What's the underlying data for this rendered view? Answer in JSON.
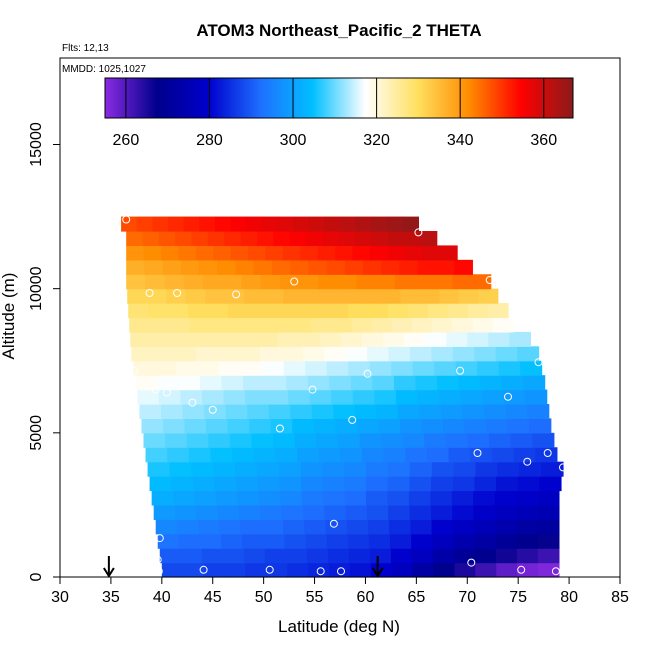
{
  "chart_data": {
    "type": "heatmap",
    "title": "ATOM3 Northeast_Pacific_2 THETA",
    "flights_label": "Flts: 12,13",
    "mmdd_label": "MMDD: 1025,1027",
    "xlabel": "Latitude (deg N)",
    "ylabel": "Altitude (m)",
    "xlim": [
      30,
      85
    ],
    "ylim": [
      0,
      18000
    ],
    "x_ticks": [
      30,
      35,
      40,
      45,
      50,
      55,
      60,
      65,
      70,
      75,
      80,
      85
    ],
    "y_ticks": [
      0,
      5000,
      10000,
      15000
    ],
    "colorbar": {
      "min": 255,
      "max": 367,
      "ticks": [
        260,
        280,
        300,
        320,
        340,
        360
      ],
      "colors": [
        "#8a2be2",
        "#00008b",
        "#0000cd",
        "#1e70ff",
        "#00bfff",
        "#ffffff",
        "#ffe060",
        "#ff8c00",
        "#ff0000",
        "#8b1a1a"
      ]
    },
    "arrows_latitude": [
      34.8,
      61.2
    ],
    "altitude_bin_m": 500,
    "section": [
      {
        "alt": 250,
        "lat_min": 40.0,
        "lat_max": 79.0,
        "theta": [
          288,
          288,
          287,
          287,
          286,
          286,
          285,
          284,
          283,
          282,
          280,
          277,
          272,
          268,
          265,
          262,
          259,
          257,
          256
        ]
      },
      {
        "alt": 750,
        "lat_min": 39.8,
        "lat_max": 79.0,
        "theta": [
          290,
          290,
          289,
          289,
          288,
          287,
          287,
          286,
          285,
          284,
          283,
          280,
          277,
          273,
          270,
          268,
          266,
          264,
          262
        ]
      },
      {
        "alt": 1250,
        "lat_min": 39.6,
        "lat_max": 79.0,
        "theta": [
          293,
          292,
          292,
          291,
          290,
          290,
          289,
          288,
          287,
          286,
          285,
          283,
          280,
          277,
          274,
          272,
          270,
          268,
          267
        ]
      },
      {
        "alt": 1750,
        "lat_min": 39.4,
        "lat_max": 79.0,
        "theta": [
          296,
          295,
          294,
          293,
          292,
          292,
          291,
          290,
          289,
          288,
          287,
          285,
          283,
          280,
          278,
          276,
          274,
          272,
          271
        ]
      },
      {
        "alt": 2250,
        "lat_min": 39.2,
        "lat_max": 79.0,
        "theta": [
          299,
          298,
          297,
          296,
          295,
          294,
          293,
          292,
          291,
          290,
          289,
          287,
          285,
          283,
          281,
          279,
          277,
          276,
          275
        ]
      },
      {
        "alt": 2750,
        "lat_min": 39.0,
        "lat_max": 79.0,
        "theta": [
          302,
          301,
          300,
          299,
          298,
          297,
          296,
          294,
          293,
          292,
          290,
          289,
          287,
          285,
          283,
          281,
          280,
          279,
          278
        ]
      },
      {
        "alt": 3250,
        "lat_min": 38.8,
        "lat_max": 79.2,
        "theta": [
          304,
          303,
          302,
          301,
          300,
          299,
          298,
          296,
          295,
          294,
          292,
          291,
          289,
          287,
          286,
          284,
          282,
          281,
          280
        ]
      },
      {
        "alt": 3750,
        "lat_min": 38.6,
        "lat_max": 79.4,
        "theta": [
          306,
          305,
          304,
          303,
          302,
          301,
          300,
          298,
          297,
          296,
          294,
          293,
          291,
          289,
          288,
          286,
          285,
          284,
          283
        ]
      },
      {
        "alt": 4250,
        "lat_min": 38.4,
        "lat_max": 78.8,
        "theta": [
          308,
          307,
          306,
          305,
          304,
          303,
          302,
          300,
          299,
          298,
          296,
          295,
          293,
          292,
          290,
          289,
          288,
          287,
          286
        ]
      },
      {
        "alt": 4750,
        "lat_min": 38.2,
        "lat_max": 78.5,
        "theta": [
          310,
          309,
          308,
          307,
          306,
          305,
          304,
          302,
          301,
          300,
          298,
          297,
          296,
          294,
          293,
          292,
          291,
          290,
          289
        ]
      },
      {
        "alt": 5250,
        "lat_min": 38.0,
        "lat_max": 78.2,
        "theta": [
          312,
          311,
          310,
          309,
          308,
          307,
          306,
          304,
          303,
          302,
          301,
          300,
          298,
          297,
          296,
          295,
          294,
          293,
          292
        ]
      },
      {
        "alt": 5750,
        "lat_min": 37.8,
        "lat_max": 78.0,
        "theta": [
          314,
          313,
          312,
          311,
          310,
          309,
          308,
          307,
          306,
          305,
          304,
          303,
          301,
          300,
          299,
          298,
          297,
          296,
          295
        ]
      },
      {
        "alt": 6250,
        "lat_min": 37.6,
        "lat_max": 77.8,
        "theta": [
          316,
          315,
          314,
          313,
          312,
          311,
          311,
          310,
          309,
          308,
          307,
          306,
          304,
          303,
          302,
          301,
          300,
          299,
          298
        ]
      },
      {
        "alt": 6750,
        "lat_min": 37.4,
        "lat_max": 77.6,
        "theta": [
          318,
          317,
          317,
          316,
          315,
          314,
          314,
          313,
          312,
          311,
          310,
          309,
          307,
          306,
          305,
          304,
          303,
          302,
          301
        ]
      },
      {
        "alt": 7250,
        "lat_min": 37.2,
        "lat_max": 77.3,
        "theta": [
          320,
          320,
          319,
          319,
          318,
          318,
          317,
          316,
          315,
          314,
          313,
          312,
          311,
          310,
          309,
          308,
          307,
          306,
          305
        ]
      },
      {
        "alt": 7750,
        "lat_min": 37.0,
        "lat_max": 77.0,
        "theta": [
          322,
          322,
          322,
          321,
          321,
          321,
          320,
          320,
          319,
          318,
          317,
          316,
          315,
          314,
          313,
          312,
          311,
          310,
          309
        ]
      },
      {
        "alt": 8250,
        "lat_min": 36.9,
        "lat_max": 76.2,
        "theta": [
          324,
          324,
          324,
          324,
          324,
          324,
          324,
          323,
          323,
          322,
          321,
          320,
          319,
          318,
          317,
          316,
          315,
          314,
          313
        ]
      },
      {
        "alt": 8750,
        "lat_min": 36.8,
        "lat_max": 74.5,
        "theta": [
          326,
          326,
          326,
          327,
          327,
          327,
          327,
          327,
          327,
          326,
          326,
          325,
          324,
          323,
          322,
          321,
          320,
          319,
          318
        ]
      },
      {
        "alt": 9250,
        "lat_min": 36.7,
        "lat_max": 74.0,
        "theta": [
          328,
          329,
          329,
          330,
          330,
          331,
          331,
          331,
          331,
          331,
          331,
          330,
          330,
          329,
          328,
          327,
          326,
          325,
          324
        ]
      },
      {
        "alt": 9750,
        "lat_min": 36.6,
        "lat_max": 73.0,
        "theta": [
          331,
          331,
          332,
          333,
          334,
          334,
          335,
          335,
          336,
          336,
          336,
          336,
          336,
          336,
          335,
          335,
          334,
          333,
          332
        ]
      },
      {
        "alt": 10250,
        "lat_min": 36.5,
        "lat_max": 72.3,
        "theta": [
          334,
          335,
          336,
          337,
          338,
          338,
          339,
          340,
          341,
          341,
          342,
          342,
          343,
          343,
          344,
          344,
          344,
          345,
          345
        ]
      },
      {
        "alt": 10750,
        "lat_min": 36.5,
        "lat_max": 70.5,
        "theta": [
          337,
          338,
          339,
          340,
          341,
          342,
          343,
          344,
          345,
          346,
          347,
          348,
          349,
          350,
          351,
          352,
          353,
          353,
          354
        ]
      },
      {
        "alt": 11250,
        "lat_min": 36.5,
        "lat_max": 69.0,
        "theta": [
          341,
          342,
          343,
          344,
          345,
          346,
          347,
          348,
          349,
          350,
          351,
          352,
          353,
          354,
          355,
          356,
          357,
          358,
          358
        ]
      },
      {
        "alt": 11750,
        "lat_min": 36.5,
        "lat_max": 67.0,
        "theta": [
          345,
          346,
          347,
          348,
          349,
          350,
          351,
          352,
          353,
          354,
          355,
          356,
          357,
          358,
          359,
          360,
          361,
          361,
          362
        ]
      },
      {
        "alt": 12250,
        "lat_min": 36.0,
        "lat_max": 65.2,
        "theta": [
          348,
          349,
          350,
          351,
          352,
          353,
          354,
          355,
          356,
          357,
          358,
          359,
          360,
          361,
          362,
          363,
          364,
          365,
          366
        ]
      }
    ],
    "sample_points": [
      {
        "lat": 36.5,
        "alt": 12400
      },
      {
        "lat": 65.2,
        "alt": 11950
      },
      {
        "lat": 38.8,
        "alt": 9850
      },
      {
        "lat": 41.5,
        "alt": 9850
      },
      {
        "lat": 47.3,
        "alt": 9800
      },
      {
        "lat": 53.0,
        "alt": 10250
      },
      {
        "lat": 72.2,
        "alt": 10300
      },
      {
        "lat": 37.3,
        "alt": 7150
      },
      {
        "lat": 39.4,
        "alt": 6500
      },
      {
        "lat": 40.5,
        "alt": 6400
      },
      {
        "lat": 43.0,
        "alt": 6050
      },
      {
        "lat": 45.0,
        "alt": 5800
      },
      {
        "lat": 54.8,
        "alt": 6500
      },
      {
        "lat": 60.2,
        "alt": 7050
      },
      {
        "lat": 69.3,
        "alt": 7150
      },
      {
        "lat": 77.0,
        "alt": 7450
      },
      {
        "lat": 74.0,
        "alt": 6250
      },
      {
        "lat": 58.7,
        "alt": 5450
      },
      {
        "lat": 51.6,
        "alt": 5150
      },
      {
        "lat": 71.0,
        "alt": 4300
      },
      {
        "lat": 75.9,
        "alt": 4000
      },
      {
        "lat": 77.9,
        "alt": 4300
      },
      {
        "lat": 79.4,
        "alt": 3800
      },
      {
        "lat": 56.9,
        "alt": 1850
      },
      {
        "lat": 39.8,
        "alt": 1350
      },
      {
        "lat": 39.6,
        "alt": 600
      },
      {
        "lat": 39.7,
        "alt": 200
      },
      {
        "lat": 44.1,
        "alt": 250
      },
      {
        "lat": 50.6,
        "alt": 250
      },
      {
        "lat": 55.6,
        "alt": 200
      },
      {
        "lat": 57.6,
        "alt": 200
      },
      {
        "lat": 70.4,
        "alt": 500
      },
      {
        "lat": 75.3,
        "alt": 250
      },
      {
        "lat": 78.7,
        "alt": 200
      }
    ]
  }
}
